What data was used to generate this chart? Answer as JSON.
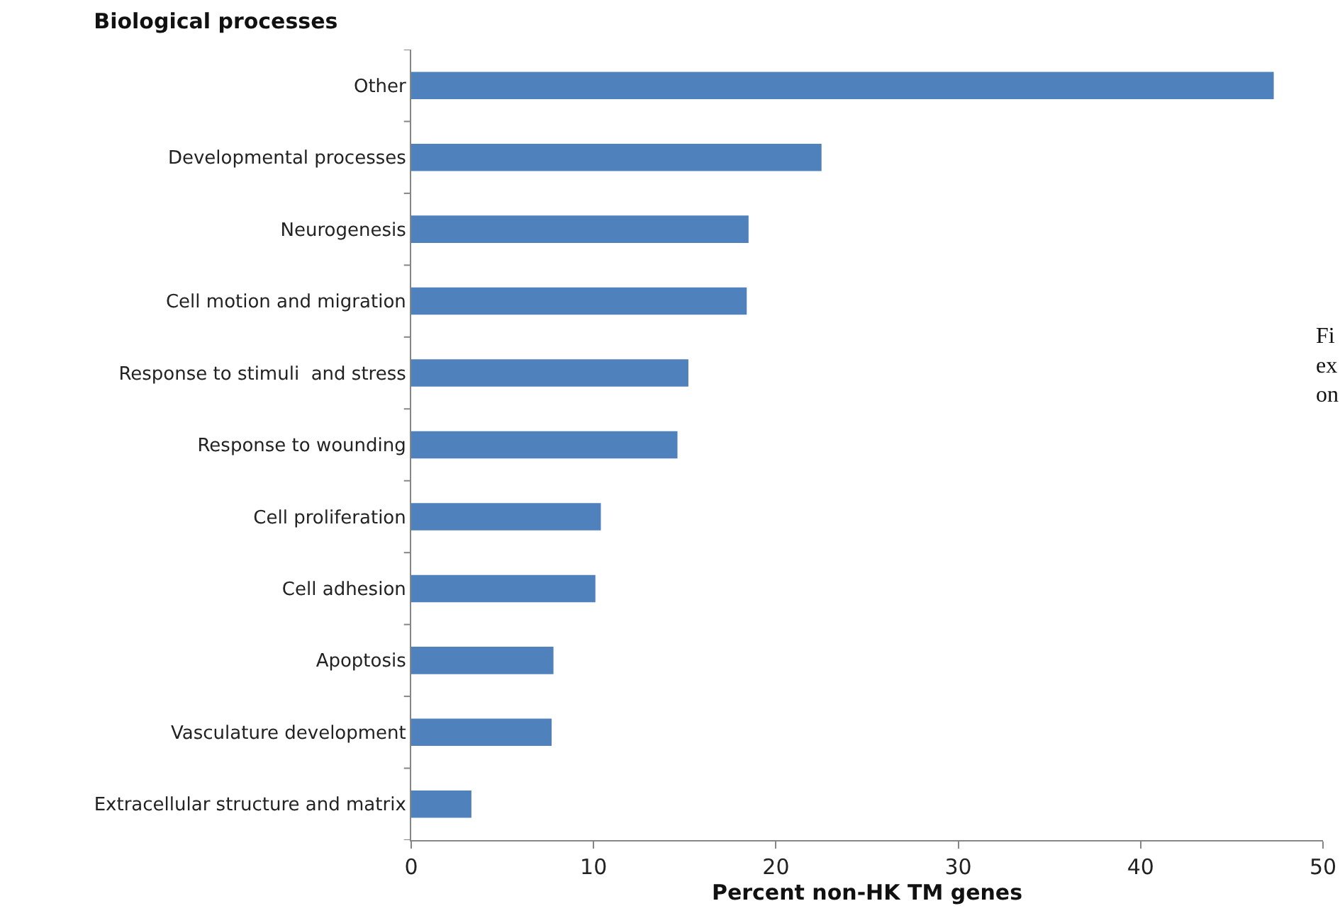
{
  "chart_data": {
    "type": "bar",
    "orientation": "horizontal",
    "title": "Biological processes",
    "xlabel": "Percent non-HK TM genes",
    "categories": [
      "Other",
      "Developmental processes",
      "Neurogenesis",
      "Cell motion and migration",
      "Response to stimuli  and stress",
      "Response to wounding",
      "Cell proliferation",
      "Cell adhesion",
      "Apoptosis",
      "Vasculature development",
      "Extracellular structure and matrix"
    ],
    "values": [
      47.3,
      22.5,
      18.5,
      18.4,
      15.2,
      14.6,
      10.4,
      10.1,
      7.8,
      7.7,
      3.3
    ],
    "color": "#4f81bd",
    "xlim": [
      0,
      50
    ],
    "xticks": [
      0,
      10,
      20,
      30,
      40,
      50
    ],
    "annotations": [
      "Fi\nex\non"
    ]
  }
}
